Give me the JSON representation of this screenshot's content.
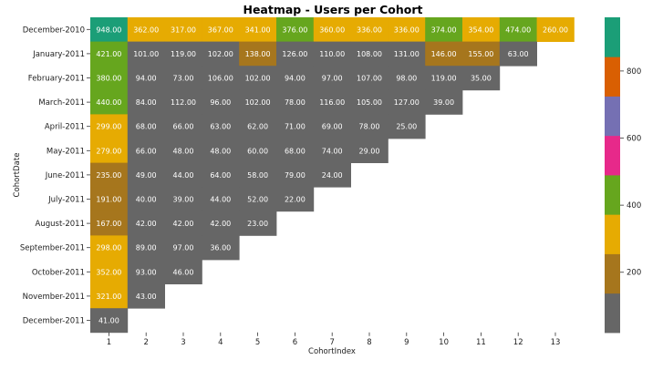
{
  "chart_data": {
    "type": "heatmap",
    "title": "Heatmap - Users per Cohort",
    "xlabel": "CohortIndex",
    "ylabel": "CohortDate",
    "columns": [
      "1",
      "2",
      "3",
      "4",
      "5",
      "6",
      "7",
      "8",
      "9",
      "10",
      "11",
      "12",
      "13"
    ],
    "rows": [
      "December-2010",
      "January-2011",
      "February-2011",
      "March-2011",
      "April-2011",
      "May-2011",
      "June-2011",
      "July-2011",
      "August-2011",
      "September-2011",
      "October-2011",
      "November-2011",
      "December-2011"
    ],
    "values": [
      [
        948,
        362,
        317,
        367,
        341,
        376,
        360,
        336,
        336,
        374,
        354,
        474,
        260
      ],
      [
        421,
        101,
        119,
        102,
        138,
        126,
        110,
        108,
        131,
        146,
        155,
        63
      ],
      [
        380,
        94,
        73,
        106,
        102,
        94,
        97,
        107,
        98,
        119,
        35
      ],
      [
        440,
        84,
        112,
        96,
        102,
        78,
        116,
        105,
        127,
        39
      ],
      [
        299,
        68,
        66,
        63,
        62,
        71,
        69,
        78,
        25
      ],
      [
        279,
        66,
        48,
        48,
        60,
        68,
        74,
        29
      ],
      [
        235,
        49,
        44,
        64,
        58,
        79,
        24
      ],
      [
        191,
        40,
        39,
        44,
        52,
        22
      ],
      [
        167,
        42,
        42,
        42,
        23
      ],
      [
        298,
        89,
        97,
        36
      ],
      [
        352,
        93,
        46
      ],
      [
        321,
        43
      ],
      [
        41
      ]
    ],
    "value_format": "2 decimals",
    "colormap": "Dark2",
    "colorbar": {
      "range": [
        20,
        960
      ],
      "ticks": [
        200,
        400,
        600,
        800
      ],
      "colors": [
        "#666666",
        "#a6761d",
        "#e6ab02",
        "#66a61e",
        "#e7298a",
        "#7570b3",
        "#d95f02",
        "#1b9e77"
      ]
    }
  }
}
